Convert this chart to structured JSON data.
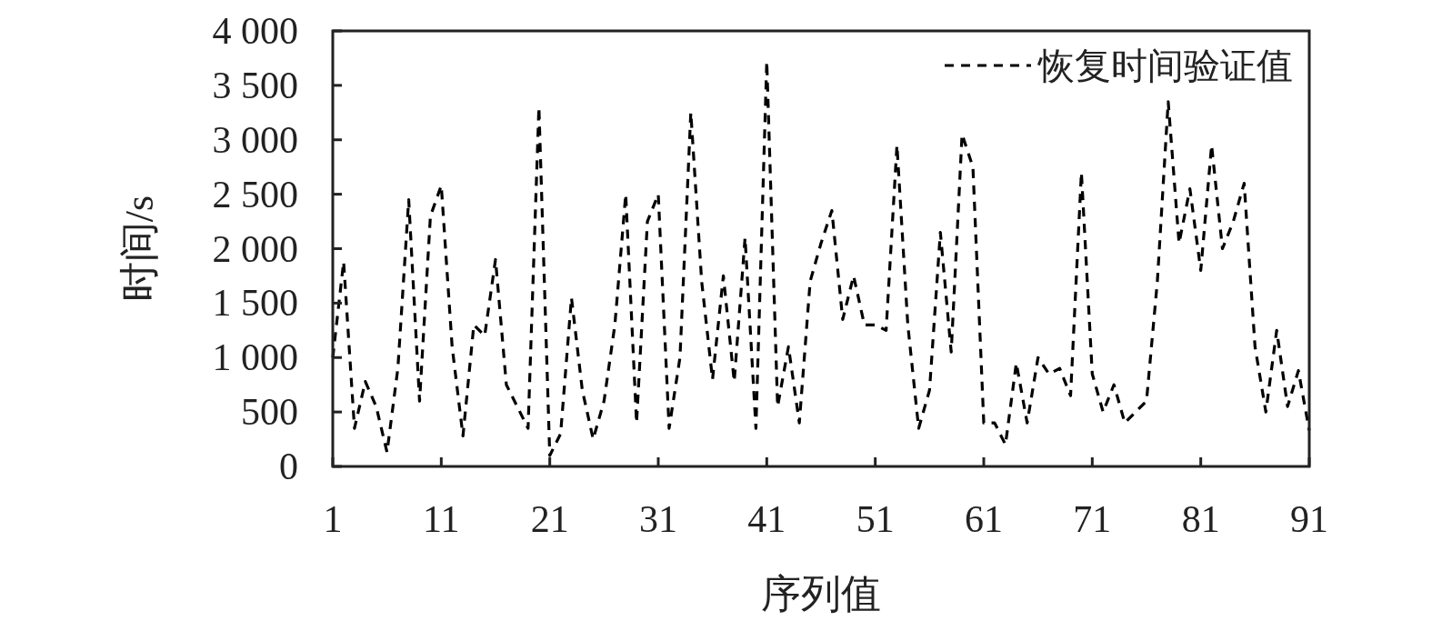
{
  "chart_data": {
    "type": "line",
    "xlabel": "序列值",
    "ylabel": "时间/s",
    "x": [
      1,
      2,
      3,
      4,
      5,
      6,
      7,
      8,
      9,
      10,
      11,
      12,
      13,
      14,
      15,
      16,
      17,
      18,
      19,
      20,
      21,
      22,
      23,
      24,
      25,
      26,
      27,
      28,
      29,
      30,
      31,
      32,
      33,
      34,
      35,
      36,
      37,
      38,
      39,
      40,
      41,
      42,
      43,
      44,
      45,
      46,
      47,
      48,
      49,
      50,
      51,
      52,
      53,
      54,
      55,
      56,
      57,
      58,
      59,
      60,
      61,
      62,
      63,
      64,
      65,
      66,
      67,
      68,
      69,
      70,
      71,
      72,
      73,
      74,
      75,
      76,
      77,
      78,
      79,
      80,
      81,
      82,
      83,
      84,
      85,
      86,
      87,
      88,
      89,
      90,
      91
    ],
    "series": [
      {
        "name": "恢复时间验证值",
        "color": "#000000",
        "line_style": "dashed",
        "values": [
          1000,
          1880,
          350,
          780,
          550,
          130,
          900,
          2450,
          600,
          2300,
          2580,
          1100,
          280,
          1300,
          1200,
          1900,
          750,
          550,
          350,
          3300,
          100,
          300,
          1550,
          700,
          250,
          600,
          1300,
          2500,
          400,
          2250,
          2500,
          350,
          1000,
          3250,
          1700,
          800,
          1750,
          780,
          2100,
          350,
          3720,
          550,
          1100,
          400,
          1700,
          2050,
          2350,
          1350,
          1750,
          1300,
          1300,
          1250,
          2950,
          1300,
          350,
          700,
          2150,
          1050,
          3050,
          2750,
          400,
          400,
          200,
          950,
          400,
          1000,
          850,
          900,
          650,
          2700,
          850,
          500,
          750,
          400,
          500,
          600,
          1700,
          3350,
          2050,
          2550,
          1800,
          2950,
          2000,
          2250,
          2600,
          1100,
          500,
          1250,
          550,
          880,
          330
        ]
      }
    ],
    "xlim": [
      1,
      91
    ],
    "xticks": [
      1,
      11,
      21,
      31,
      41,
      51,
      61,
      71,
      81,
      91
    ],
    "ylim": [
      0,
      4000
    ],
    "yticks": [
      0,
      500,
      {
        "value": 1000,
        "label": "1 000"
      },
      {
        "value": 1500,
        "label": "1 500"
      },
      {
        "value": 2000,
        "label": "2 000"
      },
      {
        "value": 2500,
        "label": "2 500"
      },
      {
        "value": 3000,
        "label": "3 000"
      },
      {
        "value": 3500,
        "label": "3 500"
      },
      {
        "value": 4000,
        "label": "4 000"
      }
    ],
    "grid": false,
    "legend": "top right"
  }
}
